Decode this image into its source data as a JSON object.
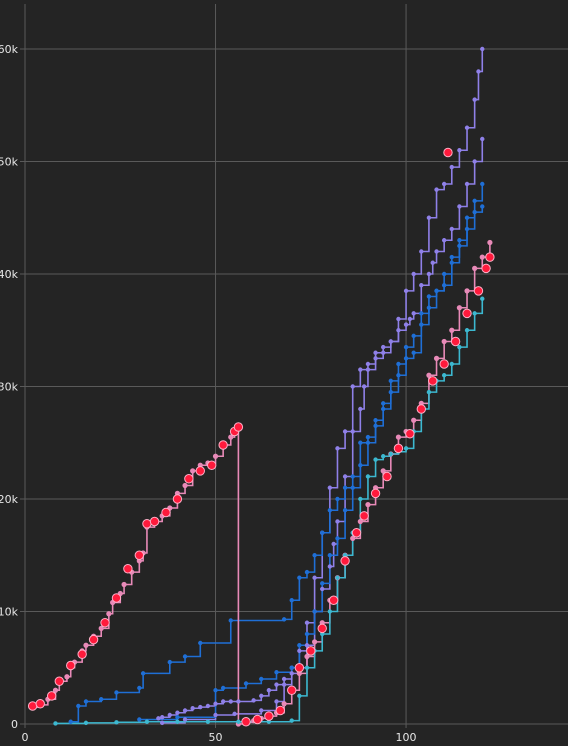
{
  "chart_data": {
    "type": "line",
    "title": "",
    "xlabel": "",
    "ylabel": "",
    "xlim": [
      0,
      132
    ],
    "ylim": [
      0,
      64000
    ],
    "grid": true,
    "x_ticks": [
      {
        "value": 0,
        "label": "0"
      },
      {
        "value": 50,
        "label": "50"
      },
      {
        "value": 100,
        "label": "100"
      }
    ],
    "y_ticks": [
      {
        "value": 0,
        "label": "0"
      },
      {
        "value": 10000,
        "label": "10k"
      },
      {
        "value": 20000,
        "label": "20k"
      },
      {
        "value": 30000,
        "label": "30k"
      },
      {
        "value": 40000,
        "label": "40k"
      },
      {
        "value": 50000,
        "label": "50k"
      },
      {
        "value": 60000,
        "label": "60k"
      }
    ],
    "series": [
      {
        "color": "#8f80e8",
        "step": true,
        "marker": "dot",
        "points": [
          [
            35,
            500
          ],
          [
            36,
            600
          ],
          [
            38,
            800
          ],
          [
            40,
            1000
          ],
          [
            42,
            1200
          ],
          [
            44,
            1400
          ],
          [
            46,
            1500
          ],
          [
            48,
            1600
          ],
          [
            50,
            1800
          ],
          [
            52,
            2000
          ],
          [
            54,
            2000
          ],
          [
            56,
            2000
          ],
          [
            60,
            2100
          ],
          [
            62,
            2500
          ],
          [
            64,
            3000
          ],
          [
            66,
            3500
          ],
          [
            68,
            4000
          ],
          [
            70,
            4500
          ],
          [
            72,
            5000
          ],
          [
            74,
            7000
          ],
          [
            76,
            10000
          ],
          [
            78,
            12000
          ],
          [
            80,
            14000
          ],
          [
            81,
            16000
          ],
          [
            82,
            18000
          ],
          [
            84,
            22000
          ],
          [
            86,
            26000
          ],
          [
            88,
            28000
          ],
          [
            89,
            30000
          ],
          [
            90,
            31500
          ],
          [
            92,
            32500
          ],
          [
            94,
            33000
          ],
          [
            96,
            34000
          ],
          [
            98,
            35000
          ],
          [
            100,
            35500
          ],
          [
            101,
            36000
          ],
          [
            102,
            36500
          ],
          [
            104,
            39000
          ],
          [
            106,
            40000
          ],
          [
            107,
            41000
          ],
          [
            108,
            42000
          ],
          [
            110,
            43000
          ],
          [
            112,
            44000
          ],
          [
            114,
            46000
          ],
          [
            116,
            48000
          ],
          [
            118,
            50000
          ],
          [
            120,
            52000
          ]
        ]
      },
      {
        "color": "#8f80e8",
        "step": true,
        "marker": "dot",
        "points": [
          [
            36,
            100
          ],
          [
            42,
            400
          ],
          [
            50,
            800
          ],
          [
            55,
            900
          ],
          [
            62,
            1200
          ],
          [
            66,
            2000
          ],
          [
            68,
            3500
          ],
          [
            70,
            5000
          ],
          [
            72,
            6500
          ],
          [
            74,
            9000
          ],
          [
            76,
            13000
          ],
          [
            78,
            17000
          ],
          [
            80,
            21000
          ],
          [
            82,
            24500
          ],
          [
            84,
            26000
          ],
          [
            86,
            30000
          ],
          [
            88,
            31500
          ],
          [
            90,
            32000
          ],
          [
            92,
            33000
          ],
          [
            94,
            33500
          ],
          [
            96,
            34000
          ],
          [
            98,
            36000
          ],
          [
            100,
            38500
          ],
          [
            102,
            40000
          ],
          [
            104,
            42000
          ],
          [
            106,
            45000
          ],
          [
            108,
            47500
          ],
          [
            110,
            48000
          ],
          [
            112,
            49500
          ],
          [
            114,
            51000
          ],
          [
            116,
            53000
          ],
          [
            118,
            55500
          ],
          [
            119,
            58000
          ],
          [
            120,
            60000
          ]
        ]
      },
      {
        "color": "#1f6fd6",
        "step": true,
        "marker": "dot",
        "points": [
          [
            12,
            200
          ],
          [
            14,
            1600
          ],
          [
            16,
            2000
          ],
          [
            20,
            2200
          ],
          [
            24,
            2800
          ],
          [
            30,
            3200
          ],
          [
            31,
            4500
          ],
          [
            38,
            5500
          ],
          [
            42,
            6000
          ],
          [
            46,
            7200
          ],
          [
            54,
            9200
          ],
          [
            68,
            9300
          ],
          [
            70,
            11000
          ],
          [
            72,
            13000
          ],
          [
            74,
            13500
          ],
          [
            76,
            15000
          ],
          [
            78,
            17000
          ],
          [
            80,
            19000
          ],
          [
            82,
            20000
          ],
          [
            84,
            21000
          ],
          [
            86,
            22000
          ],
          [
            88,
            25000
          ],
          [
            90,
            25500
          ],
          [
            92,
            27000
          ],
          [
            94,
            28500
          ],
          [
            96,
            30500
          ],
          [
            98,
            32000
          ],
          [
            100,
            33500
          ],
          [
            102,
            34500
          ],
          [
            104,
            36500
          ],
          [
            106,
            38000
          ],
          [
            108,
            38500
          ],
          [
            110,
            39000
          ],
          [
            112,
            41000
          ],
          [
            114,
            43000
          ],
          [
            116,
            45000
          ],
          [
            118,
            46500
          ],
          [
            120,
            48000
          ]
        ]
      },
      {
        "color": "#1f6fd6",
        "step": true,
        "marker": "dot",
        "points": [
          [
            30,
            400
          ],
          [
            40,
            600
          ],
          [
            50,
            3000
          ],
          [
            52,
            3200
          ],
          [
            58,
            3600
          ],
          [
            62,
            4000
          ],
          [
            66,
            4600
          ],
          [
            70,
            5000
          ],
          [
            72,
            7000
          ],
          [
            74,
            8000
          ],
          [
            76,
            10000
          ],
          [
            78,
            12500
          ],
          [
            80,
            15000
          ],
          [
            82,
            16500
          ],
          [
            84,
            19000
          ],
          [
            86,
            21000
          ],
          [
            88,
            23000
          ],
          [
            90,
            25000
          ],
          [
            92,
            26500
          ],
          [
            94,
            28000
          ],
          [
            96,
            29500
          ],
          [
            98,
            31000
          ],
          [
            100,
            32500
          ],
          [
            102,
            33000
          ],
          [
            104,
            35500
          ],
          [
            106,
            37000
          ],
          [
            108,
            38500
          ],
          [
            110,
            40000
          ],
          [
            112,
            41500
          ],
          [
            114,
            42500
          ],
          [
            116,
            44000
          ],
          [
            118,
            45500
          ],
          [
            120,
            46000
          ]
        ]
      },
      {
        "color": "#e88ab8",
        "step": true,
        "marker": "ring",
        "points": [
          [
            2,
            1500
          ],
          [
            4,
            1700
          ],
          [
            6,
            2200
          ],
          [
            8,
            3000
          ],
          [
            9,
            3800
          ],
          [
            11,
            4200
          ],
          [
            12,
            5000
          ],
          [
            13,
            5500
          ],
          [
            15,
            6500
          ],
          [
            16,
            7000
          ],
          [
            18,
            7800
          ],
          [
            20,
            8500
          ],
          [
            22,
            9800
          ],
          [
            23,
            10800
          ],
          [
            25,
            11600
          ],
          [
            26,
            12400
          ],
          [
            28,
            13500
          ],
          [
            30,
            14500
          ],
          [
            31,
            15200
          ],
          [
            32,
            17500
          ],
          [
            34,
            18000
          ],
          [
            36,
            18500
          ],
          [
            38,
            19200
          ],
          [
            40,
            20500
          ],
          [
            42,
            21200
          ],
          [
            44,
            22500
          ],
          [
            46,
            23000
          ],
          [
            48,
            23200
          ],
          [
            50,
            23800
          ],
          [
            52,
            24800
          ],
          [
            54,
            25500
          ],
          [
            55,
            25900
          ],
          [
            56,
            26500
          ],
          [
            56,
            0
          ],
          [
            58,
            150
          ],
          [
            60,
            300
          ],
          [
            62,
            500
          ],
          [
            64,
            700
          ],
          [
            66,
            1000
          ],
          [
            68,
            1800
          ],
          [
            70,
            3000
          ],
          [
            72,
            4500
          ],
          [
            74,
            6000
          ],
          [
            76,
            7300
          ],
          [
            78,
            9000
          ],
          [
            80,
            11000
          ],
          [
            82,
            13000
          ],
          [
            84,
            15000
          ],
          [
            86,
            16500
          ],
          [
            88,
            18000
          ],
          [
            90,
            19500
          ],
          [
            92,
            21000
          ],
          [
            94,
            22500
          ],
          [
            96,
            24000
          ],
          [
            98,
            25500
          ],
          [
            100,
            26000
          ],
          [
            102,
            27000
          ],
          [
            104,
            28500
          ],
          [
            106,
            31000
          ],
          [
            108,
            32500
          ],
          [
            110,
            34000
          ],
          [
            112,
            35000
          ],
          [
            114,
            37000
          ],
          [
            116,
            38500
          ],
          [
            118,
            40500
          ],
          [
            120,
            41500
          ],
          [
            122,
            42800
          ]
        ]
      },
      {
        "color": "#3cb8d0",
        "step": true,
        "marker": "dot",
        "points": [
          [
            8,
            50
          ],
          [
            16,
            100
          ],
          [
            24,
            150
          ],
          [
            32,
            200
          ],
          [
            40,
            200
          ],
          [
            48,
            200
          ],
          [
            56,
            200
          ],
          [
            64,
            200
          ],
          [
            70,
            300
          ],
          [
            72,
            2500
          ],
          [
            74,
            5000
          ],
          [
            76,
            6500
          ],
          [
            78,
            8000
          ],
          [
            80,
            10000
          ],
          [
            82,
            13000
          ],
          [
            84,
            15000
          ],
          [
            86,
            17000
          ],
          [
            88,
            20000
          ],
          [
            90,
            22000
          ],
          [
            92,
            23500
          ],
          [
            94,
            23800
          ],
          [
            96,
            24000
          ],
          [
            98,
            24200
          ],
          [
            100,
            24500
          ],
          [
            102,
            26000
          ],
          [
            104,
            28000
          ],
          [
            106,
            29500
          ],
          [
            108,
            30500
          ],
          [
            110,
            31000
          ],
          [
            112,
            32000
          ],
          [
            114,
            33500
          ],
          [
            116,
            35000
          ],
          [
            118,
            36500
          ],
          [
            120,
            37800
          ]
        ]
      }
    ],
    "highlights": [
      [
        2,
        1600
      ],
      [
        4,
        1800
      ],
      [
        7,
        2500
      ],
      [
        9,
        3800
      ],
      [
        12,
        5200
      ],
      [
        15,
        6200
      ],
      [
        18,
        7500
      ],
      [
        21,
        9000
      ],
      [
        24,
        11200
      ],
      [
        27,
        13800
      ],
      [
        30,
        15000
      ],
      [
        32,
        17800
      ],
      [
        34,
        18000
      ],
      [
        37,
        18800
      ],
      [
        40,
        20000
      ],
      [
        43,
        21800
      ],
      [
        46,
        22500
      ],
      [
        49,
        23000
      ],
      [
        52,
        24800
      ],
      [
        55,
        26000
      ],
      [
        56,
        26400
      ],
      [
        58,
        200
      ],
      [
        61,
        400
      ],
      [
        64,
        700
      ],
      [
        67,
        1200
      ],
      [
        70,
        3000
      ],
      [
        72,
        5000
      ],
      [
        75,
        6500
      ],
      [
        78,
        8500
      ],
      [
        81,
        11000
      ],
      [
        84,
        14500
      ],
      [
        87,
        17000
      ],
      [
        89,
        18500
      ],
      [
        92,
        20500
      ],
      [
        95,
        22000
      ],
      [
        98,
        24500
      ],
      [
        101,
        25800
      ],
      [
        104,
        28000
      ],
      [
        107,
        30500
      ],
      [
        110,
        32000
      ],
      [
        113,
        34000
      ],
      [
        116,
        36500
      ],
      [
        119,
        38500
      ],
      [
        121,
        40500
      ],
      [
        122,
        41500
      ],
      [
        111,
        50800
      ]
    ]
  }
}
